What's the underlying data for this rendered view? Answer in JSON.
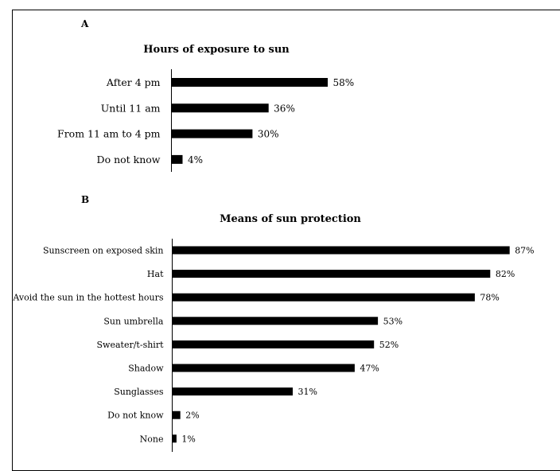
{
  "chart_data": [
    {
      "type": "bar",
      "orientation": "horizontal",
      "panel": "A",
      "title": "Hours of exposure to sun",
      "categories": [
        "After 4 pm",
        "Until 11 am",
        "From 11 am to 4 pm",
        "Do not know"
      ],
      "values": [
        58,
        36,
        30,
        4
      ],
      "value_labels": [
        "58%",
        "36%",
        "30%",
        "4%"
      ],
      "xlim": [
        0,
        100
      ],
      "grid": false,
      "bar_color": "#000000"
    },
    {
      "type": "bar",
      "orientation": "horizontal",
      "panel": "B",
      "title": "Means of sun protection",
      "categories": [
        "Sunscreen on exposed skin",
        "Hat",
        "Avoid the sun in the hottest hours",
        "Sun umbrella",
        "Sweater/t-shirt",
        "Shadow",
        "Sunglasses",
        "Do not know",
        "None"
      ],
      "values": [
        87,
        82,
        78,
        53,
        52,
        47,
        31,
        2,
        1
      ],
      "value_labels": [
        "87%",
        "82%",
        "78%",
        "53%",
        "52%",
        "47%",
        "31%",
        "2%",
        "1%"
      ],
      "xlim": [
        0,
        100
      ],
      "grid": false,
      "bar_color": "#000000"
    }
  ]
}
